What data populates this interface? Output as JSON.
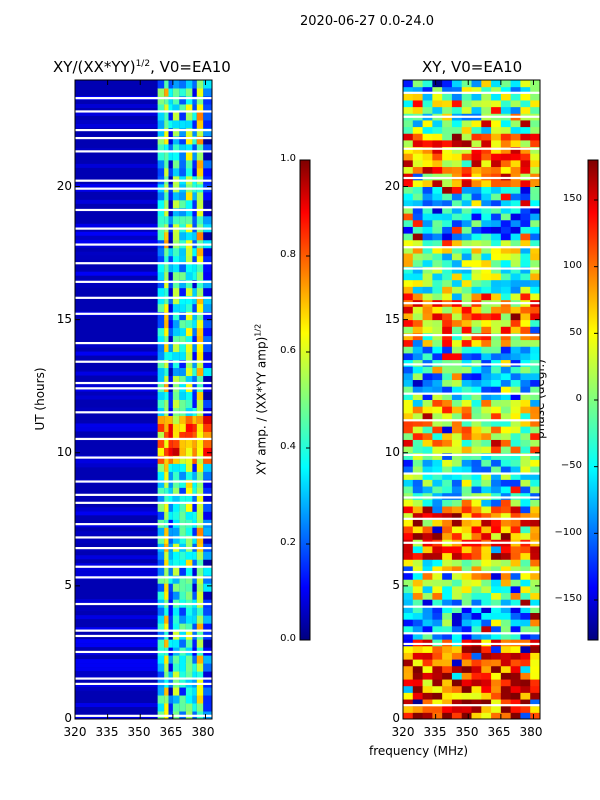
{
  "figure": {
    "suptitle": "2020-06-27 0.0-24.0"
  },
  "colors": {
    "jet_dark_blue": "#00007f",
    "jet_blue": "#0000ff",
    "jet_cyan": "#00ffff",
    "jet_yellow": "#ffff00",
    "jet_red": "#ff0000",
    "jet_dark_red": "#7f0000"
  },
  "chart_data": [
    {
      "type": "heatmap",
      "title": "XY/(XX*YY)^(1/2), V0=EA10",
      "title_main": "XY/(XX*YY)",
      "title_sup": "1/2",
      "title_tail": ", V0=EA10",
      "xlabel": "",
      "ylabel": "UT (hours)",
      "xlim": [
        320,
        383
      ],
      "ylim": [
        0,
        24
      ],
      "xticks": [
        320,
        335,
        350,
        365,
        380
      ],
      "yticks": [
        0,
        5,
        10,
        15,
        20
      ],
      "colormap": "jet",
      "colorbar": {
        "label": "XY amp. / (XX*YY amp)^(1/2)",
        "label_main": "XY amp. / (XX*YY amp)",
        "label_sup": "1/2",
        "range": [
          0.0,
          1.0
        ],
        "ticks": [
          "0.0",
          "0.2",
          "0.4",
          "0.6",
          "0.8",
          "1.0"
        ]
      },
      "background_value": 0.05,
      "signal_columns_mhz": [
        {
          "x0": 358,
          "x1": 361,
          "value": 0.35
        },
        {
          "x0": 361,
          "x1": 363,
          "value": 0.55
        },
        {
          "x0": 363,
          "x1": 365,
          "value": 0.22
        },
        {
          "x0": 365,
          "x1": 368,
          "value": 0.42
        },
        {
          "x0": 368,
          "x1": 371,
          "value": 0.32
        },
        {
          "x0": 371,
          "x1": 374,
          "value": 0.5
        },
        {
          "x0": 374,
          "x1": 376,
          "value": 0.25
        },
        {
          "x0": 376,
          "x1": 379,
          "value": 0.58
        },
        {
          "x0": 379,
          "x1": 383,
          "value": 0.2
        }
      ],
      "flagged_hours": [
        0.1,
        1.3,
        1.5,
        2.5,
        3.1,
        3.3,
        4.3,
        5.3,
        5.7,
        6.4,
        6.8,
        7.3,
        8.1,
        8.4,
        8.9,
        9.8,
        10.5,
        11.5,
        12.4,
        12.6,
        13.4,
        14.1,
        15.2,
        15.8,
        16.4,
        17.1,
        17.8,
        18.4,
        19.1,
        19.9,
        20.2,
        21.3,
        21.8,
        22.1,
        22.8,
        23.3
      ]
    },
    {
      "type": "heatmap",
      "title": "XY, V0=EA10",
      "xlabel": "frequency (MHz)",
      "ylabel": "",
      "xlim": [
        320,
        383
      ],
      "ylim": [
        0,
        24
      ],
      "xticks": [
        320,
        335,
        350,
        365,
        380
      ],
      "yticks": [
        0,
        5,
        10,
        15,
        20
      ],
      "colormap": "jet",
      "colorbar": {
        "label": "phase (degr.)",
        "range": [
          -180,
          180
        ],
        "ticks": [
          "150",
          "100",
          "50",
          "0",
          "−50",
          "−100",
          "−150"
        ],
        "tick_values": [
          150,
          100,
          50,
          0,
          -50,
          -100,
          -150
        ]
      },
      "phase_bands_hours": [
        {
          "y0": 0,
          "y1": 3,
          "value": 0.82
        },
        {
          "y0": 3,
          "y1": 4.5,
          "value": 0.3
        },
        {
          "y0": 4.5,
          "y1": 6,
          "value": 0.55
        },
        {
          "y0": 6,
          "y1": 8,
          "value": 0.78
        },
        {
          "y0": 8,
          "y1": 10,
          "value": 0.4
        },
        {
          "y0": 10,
          "y1": 12,
          "value": 0.62
        },
        {
          "y0": 12,
          "y1": 14,
          "value": 0.35
        },
        {
          "y0": 14,
          "y1": 16,
          "value": 0.7
        },
        {
          "y0": 16,
          "y1": 18,
          "value": 0.5
        },
        {
          "y0": 18,
          "y1": 20,
          "value": 0.3
        },
        {
          "y0": 20,
          "y1": 22,
          "value": 0.75
        },
        {
          "y0": 22,
          "y1": 24,
          "value": 0.45
        }
      ],
      "flagged_hours": [
        0.5,
        2.8,
        3.2,
        4.2,
        5.5,
        6.6,
        7.5,
        8.3,
        9.2,
        9.9,
        11.2,
        12.2,
        13.3,
        14.4,
        15.6,
        16.9,
        17.7,
        19.2,
        20.3,
        21.4,
        22.6,
        23.5
      ]
    }
  ]
}
